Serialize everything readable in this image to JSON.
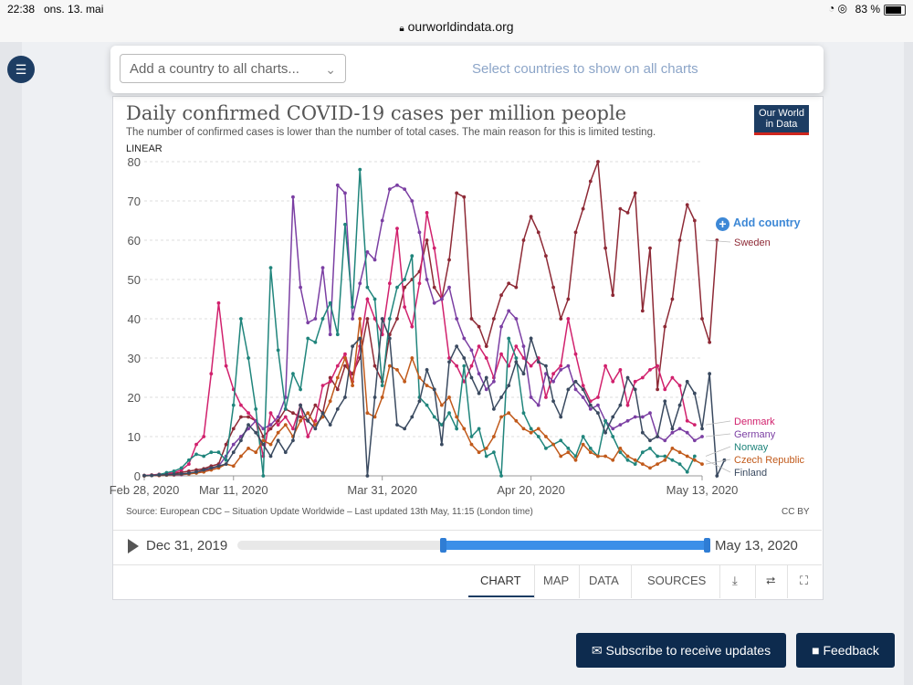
{
  "status": {
    "time": "22:38",
    "date": "ons. 13. mai",
    "battery": "83 %"
  },
  "url": "ourworldindata.org",
  "banner": {
    "select_placeholder": "Add a country to all charts...",
    "hint": "Select countries to show on all charts"
  },
  "logo": {
    "line1": "Our World",
    "line2": "in Data"
  },
  "add_country": "Add country",
  "timeline": {
    "start": "Dec 31, 2019",
    "end": "May 13, 2020"
  },
  "tabs": [
    "CHART",
    "MAP",
    "DATA",
    "SOURCES"
  ],
  "buttons": {
    "subscribe": "Subscribe to receive updates",
    "feedback": "Feedback"
  },
  "chart_data": {
    "type": "line",
    "title": "Daily confirmed COVID-19 cases per million people",
    "subtitle": "The number of confirmed cases is lower than the number of total cases. The main reason for this is limited testing.",
    "scale_label": "LINEAR",
    "source": "Source: European CDC – Situation Update Worldwide – Last updated 13th May, 11:15 (London time)",
    "license": "CC BY",
    "xlabels": [
      "Feb 28, 2020",
      "Mar 11, 2020",
      "Mar 31, 2020",
      "Apr 20, 2020",
      "May 13, 2020"
    ],
    "xlabel_days": [
      0,
      12,
      32,
      52,
      75
    ],
    "ylim": [
      0,
      80
    ],
    "yticks": [
      0,
      10,
      20,
      30,
      40,
      50,
      60,
      70,
      80
    ],
    "x_start_day": 0,
    "series": [
      {
        "name": "Sweden",
        "color": "#8e2a36",
        "values": [
          0.1,
          0.2,
          0.3,
          0.5,
          0.6,
          0.9,
          1.2,
          1.5,
          1.8,
          2.5,
          3,
          8,
          12,
          15,
          15,
          14,
          10,
          12,
          14,
          17,
          16,
          15,
          14,
          18,
          16,
          25,
          22,
          28,
          26,
          30,
          40,
          28,
          24,
          36,
          40,
          48,
          50,
          52,
          60,
          48,
          45,
          55,
          72,
          71,
          40,
          38,
          33,
          40,
          46,
          49,
          48,
          60,
          66,
          62,
          56,
          48,
          40,
          45,
          62,
          68,
          75,
          80,
          58,
          46,
          68,
          67,
          72,
          42,
          58,
          22,
          38,
          45,
          60,
          69,
          65,
          40,
          34,
          60
        ]
      },
      {
        "name": "Denmark",
        "color": "#d1216d",
        "values": [
          0,
          0.2,
          0.4,
          0.6,
          0.8,
          1.5,
          3,
          8,
          10,
          26,
          44,
          28,
          22,
          18,
          16,
          14,
          5,
          16,
          13,
          15,
          12,
          18,
          10,
          14,
          23,
          24,
          28,
          31,
          24,
          33,
          45,
          40,
          36,
          49,
          63,
          43,
          38,
          49,
          67,
          58,
          45,
          30,
          28,
          24,
          28,
          33,
          30,
          25,
          31,
          28,
          33,
          30,
          28,
          30,
          20,
          26,
          28,
          40,
          31,
          23,
          19,
          20,
          28,
          24,
          27,
          18,
          24,
          25,
          27,
          28,
          22,
          25,
          23,
          14,
          13
        ]
      },
      {
        "name": "Germany",
        "color": "#7b3fa3",
        "values": [
          0.05,
          0.1,
          0.1,
          0.2,
          0.2,
          0.3,
          0.5,
          0.8,
          1.2,
          1.8,
          2.5,
          5,
          8,
          10,
          12,
          14,
          12,
          13,
          15,
          20,
          71,
          48,
          39,
          40,
          53,
          36,
          74,
          72,
          40,
          49,
          57,
          55,
          65,
          73,
          74,
          73,
          70,
          62,
          50,
          44,
          45,
          48,
          40,
          35,
          32,
          26,
          22,
          24,
          38,
          42,
          40,
          33,
          20,
          18,
          26,
          24,
          27,
          28,
          22,
          20,
          17,
          18,
          14,
          12,
          13,
          14,
          15,
          15,
          16,
          10,
          9,
          11,
          12,
          11,
          9,
          10
        ]
      },
      {
        "name": "Norway",
        "color": "#20857c",
        "values": [
          0,
          0.1,
          0.3,
          0.8,
          1.2,
          2,
          4,
          5.5,
          5,
          6,
          6,
          4,
          18,
          40,
          30,
          17,
          0,
          53,
          32,
          17,
          26,
          22,
          35,
          34,
          40,
          44,
          36,
          64,
          43,
          78,
          48,
          45,
          23,
          40,
          48,
          50,
          56,
          20,
          18,
          15,
          13,
          16,
          12,
          28,
          10,
          12,
          5,
          6,
          0,
          35,
          30,
          16,
          12,
          10,
          7,
          8,
          9,
          7,
          5,
          10,
          7,
          5,
          14,
          10,
          6,
          4,
          3,
          6,
          7,
          5,
          5,
          4,
          3,
          1,
          5
        ]
      },
      {
        "name": "Czech Republic",
        "color": "#c15a1b",
        "values": [
          0,
          0.1,
          0.1,
          0.2,
          0.3,
          0.4,
          0.5,
          0.7,
          1,
          1.5,
          2,
          3,
          2.5,
          5,
          7,
          6,
          9,
          8,
          11,
          13,
          10,
          14,
          16,
          13,
          15,
          19,
          25,
          30,
          23,
          40,
          16,
          15,
          20,
          28,
          27,
          24,
          30,
          25,
          23,
          22,
          18,
          20,
          15,
          12,
          8,
          6,
          7,
          10,
          15,
          16,
          14,
          12,
          11,
          12,
          10,
          8,
          5,
          6,
          4,
          8,
          6,
          5,
          5,
          4,
          7,
          5,
          4,
          3,
          2,
          3,
          4,
          7,
          6,
          5,
          4,
          3
        ]
      },
      {
        "name": "Finland",
        "color": "#3a4a60",
        "values": [
          0.05,
          0.1,
          0.2,
          0.3,
          0.4,
          0.5,
          0.7,
          1,
          1.5,
          2,
          2.5,
          3,
          6,
          9,
          13,
          11,
          8,
          5,
          9,
          6,
          9,
          18,
          14,
          12,
          16,
          13,
          17,
          20,
          33,
          35,
          0,
          20,
          40,
          35,
          13,
          12,
          15,
          19,
          27,
          22,
          8,
          29,
          33,
          30,
          25,
          21,
          25,
          17,
          20,
          23,
          29,
          26,
          35,
          29,
          28,
          19,
          15,
          22,
          24,
          22,
          18,
          16,
          11,
          15,
          18,
          25,
          22,
          11,
          9,
          10,
          19,
          12,
          18,
          24,
          21,
          12,
          26,
          0,
          4
        ]
      }
    ]
  }
}
